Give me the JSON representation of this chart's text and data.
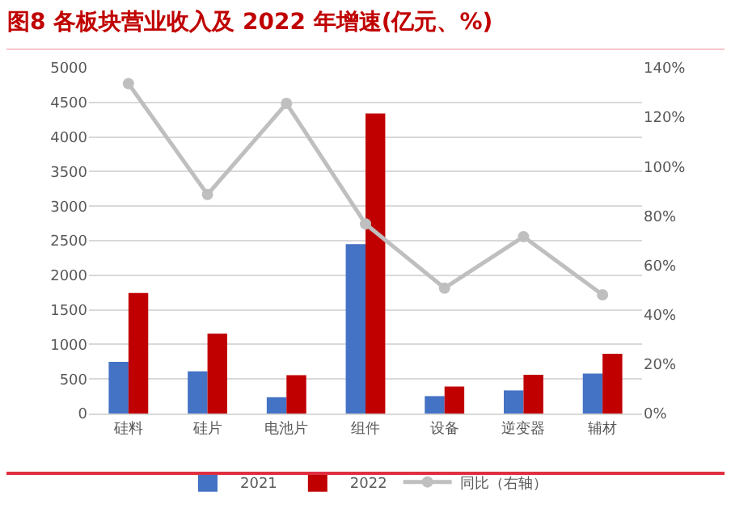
{
  "chart_data": {
    "type": "bar",
    "title": "图8 各板块营业收入及 2022 年增速(亿元、%)",
    "categories": [
      "硅料",
      "硅片",
      "电池片",
      "组件",
      "设备",
      "逆变器",
      "辅材"
    ],
    "series": [
      {
        "name": "2021",
        "color": "#4472c4",
        "values": [
          749,
          611,
          236,
          2451,
          252,
          334,
          578
        ]
      },
      {
        "name": "2022",
        "color": "#c00000",
        "values": [
          1743,
          1156,
          554,
          4340,
          391,
          562,
          863
        ]
      },
      {
        "name": "同比（右轴）",
        "type": "line",
        "axis": "y2",
        "color": "#bfbfbf",
        "marker": "circle",
        "values": [
          133.6,
          88.7,
          125.6,
          76.8,
          50.8,
          71.6,
          48.1
        ]
      }
    ],
    "ylim": [
      0,
      5000
    ],
    "yticks": [
      0,
      500,
      1000,
      1500,
      2000,
      2500,
      3000,
      3500,
      4000,
      4500,
      5000
    ],
    "y2lim": [
      0,
      140
    ],
    "y2ticks": [
      {
        "value": 0,
        "label": "0%"
      },
      {
        "value": 20,
        "label": "20%"
      },
      {
        "value": 40,
        "label": "40%"
      },
      {
        "value": 60,
        "label": "60%"
      },
      {
        "value": 80,
        "label": "80%"
      },
      {
        "value": 100,
        "label": "100%"
      },
      {
        "value": 120,
        "label": "120%"
      },
      {
        "value": 140,
        "label": "140%"
      }
    ],
    "grid": "y",
    "legend": "bottom"
  }
}
